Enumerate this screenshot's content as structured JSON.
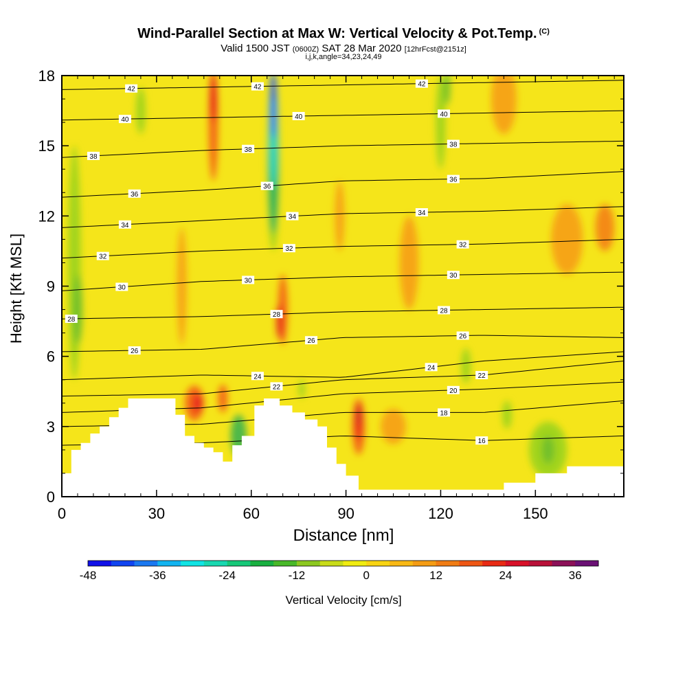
{
  "title": "Wind-Parallel Section at Max W: Vertical Velocity & Pot.Temp.",
  "title_mark": "(C)",
  "subtitle_main": "Valid 1500 JST",
  "subtitle_small1": "(0600Z)",
  "subtitle_date": "SAT 28 Mar 2020",
  "subtitle_small2": "[12hrFcst@2151z]",
  "subtitle2": "i,j,k,angle=34,23,24,49",
  "chart_data": {
    "type": "heatmap",
    "xlabel": "Distance [nm]",
    "ylabel": "Height [Kft MSL]",
    "xlim": [
      0,
      178
    ],
    "ylim": [
      0,
      18
    ],
    "xticks": [
      0,
      30,
      60,
      90,
      120,
      150
    ],
    "yticks": [
      0,
      3,
      6,
      9,
      12,
      15,
      18
    ],
    "background_color": "#f5e51a",
    "terrain_color": "#ffffff",
    "terrain": [
      [
        0,
        1
      ],
      [
        3,
        1
      ],
      [
        3,
        2
      ],
      [
        6,
        2
      ],
      [
        6,
        2.3
      ],
      [
        9,
        2.3
      ],
      [
        9,
        2.7
      ],
      [
        12,
        2.7
      ],
      [
        12,
        3
      ],
      [
        15,
        3
      ],
      [
        15,
        3.4
      ],
      [
        18,
        3.4
      ],
      [
        18,
        3.8
      ],
      [
        21,
        3.8
      ],
      [
        21,
        4.2
      ],
      [
        36,
        4.2
      ],
      [
        36,
        3.5
      ],
      [
        39,
        3.5
      ],
      [
        39,
        2.6
      ],
      [
        42,
        2.6
      ],
      [
        42,
        2.3
      ],
      [
        45,
        2.3
      ],
      [
        45,
        2.1
      ],
      [
        48,
        2.1
      ],
      [
        48,
        1.9
      ],
      [
        51,
        1.9
      ],
      [
        51,
        1.5
      ],
      [
        54,
        1.5
      ],
      [
        54,
        2.2
      ],
      [
        57,
        2.2
      ],
      [
        57,
        2.6
      ],
      [
        61,
        2.6
      ],
      [
        61,
        3.9
      ],
      [
        64,
        3.9
      ],
      [
        64,
        4.2
      ],
      [
        69,
        4.2
      ],
      [
        69,
        3.9
      ],
      [
        73,
        3.9
      ],
      [
        73,
        3.6
      ],
      [
        77,
        3.6
      ],
      [
        77,
        3.3
      ],
      [
        81,
        3.3
      ],
      [
        81,
        3.0
      ],
      [
        84,
        3.0
      ],
      [
        84,
        2.1
      ],
      [
        87,
        2.1
      ],
      [
        87,
        1.4
      ],
      [
        90,
        1.4
      ],
      [
        90,
        0.9
      ],
      [
        94,
        0.9
      ],
      [
        94,
        0.3
      ],
      [
        100,
        0.3
      ],
      [
        100,
        0.3
      ],
      [
        120,
        0.3
      ],
      [
        120,
        0.3
      ],
      [
        140,
        0.3
      ],
      [
        140,
        0.6
      ],
      [
        150,
        0.6
      ],
      [
        150,
        1.0
      ],
      [
        160,
        1.0
      ],
      [
        160,
        1.3
      ],
      [
        178,
        1.3
      ],
      [
        178,
        1
      ]
    ],
    "velocity_regions": [
      {
        "x": 4,
        "y": 10,
        "w": 4,
        "h": 10,
        "color": "#a2d41c"
      },
      {
        "x": 5,
        "y": 8,
        "w": 3,
        "h": 3,
        "color": "#72c02a"
      },
      {
        "x": 25,
        "y": 16.5,
        "w": 3,
        "h": 2,
        "color": "#a2d41c"
      },
      {
        "x": 48,
        "y": 16,
        "w": 3,
        "h": 5,
        "color": "#f46a13"
      },
      {
        "x": 48,
        "y": 17,
        "w": 2,
        "h": 2,
        "color": "#e8241a"
      },
      {
        "x": 38,
        "y": 9,
        "w": 3,
        "h": 5,
        "color": "#f6a514"
      },
      {
        "x": 42,
        "y": 4,
        "w": 6,
        "h": 1.5,
        "color": "#f46a13"
      },
      {
        "x": 43,
        "y": 4,
        "w": 3,
        "h": 0.8,
        "color": "#e8241a"
      },
      {
        "x": 51,
        "y": 4.2,
        "w": 3,
        "h": 1.2,
        "color": "#f46a13"
      },
      {
        "x": 56,
        "y": 2.6,
        "w": 5,
        "h": 1.8,
        "color": "#4db848"
      },
      {
        "x": 67,
        "y": 14.5,
        "w": 4,
        "h": 8,
        "color": "#a2d41c"
      },
      {
        "x": 67,
        "y": 14,
        "w": 3,
        "h": 5.5,
        "color": "#22b25a"
      },
      {
        "x": 67,
        "y": 15,
        "w": 2.6,
        "h": 3.6,
        "color": "#19d4c0"
      },
      {
        "x": 67,
        "y": 16.5,
        "w": 2.2,
        "h": 2.4,
        "color": "#0080f5"
      },
      {
        "x": 67,
        "y": 17.5,
        "w": 1.6,
        "h": 1.2,
        "color": "#1030e0"
      },
      {
        "x": 70,
        "y": 8,
        "w": 3,
        "h": 3,
        "color": "#f46a13"
      },
      {
        "x": 69,
        "y": 7.5,
        "w": 2,
        "h": 1.5,
        "color": "#e8241a"
      },
      {
        "x": 76,
        "y": 4.6,
        "w": 2,
        "h": 0.8,
        "color": "#a2d41c"
      },
      {
        "x": 94,
        "y": 3,
        "w": 4,
        "h": 2.4,
        "color": "#f46a13"
      },
      {
        "x": 94,
        "y": 3.2,
        "w": 2,
        "h": 1.6,
        "color": "#e8241a"
      },
      {
        "x": 94,
        "y": 3.5,
        "w": 1,
        "h": 0.8,
        "color": "#b8102a"
      },
      {
        "x": 105,
        "y": 3,
        "w": 8,
        "h": 1.5,
        "color": "#f6a514"
      },
      {
        "x": 120,
        "y": 16,
        "w": 3,
        "h": 4,
        "color": "#a2d41c"
      },
      {
        "x": 122,
        "y": 17.5,
        "w": 2,
        "h": 1.5,
        "color": "#72c02a"
      },
      {
        "x": 140,
        "y": 17,
        "w": 8,
        "h": 3,
        "color": "#f6a514"
      },
      {
        "x": 160,
        "y": 11,
        "w": 10,
        "h": 3,
        "color": "#f6a514"
      },
      {
        "x": 172,
        "y": 11.5,
        "w": 6,
        "h": 2,
        "color": "#f48a14"
      },
      {
        "x": 128,
        "y": 5.6,
        "w": 3,
        "h": 1.5,
        "color": "#a2d41c"
      },
      {
        "x": 141,
        "y": 3.5,
        "w": 3,
        "h": 1.2,
        "color": "#a2d41c"
      },
      {
        "x": 154,
        "y": 2,
        "w": 12,
        "h": 2.4,
        "color": "#a2d41c"
      },
      {
        "x": 154,
        "y": 2,
        "w": 4,
        "h": 1.2,
        "color": "#72c02a"
      },
      {
        "x": 110,
        "y": 10,
        "w": 6,
        "h": 4,
        "color": "#f6a514"
      },
      {
        "x": 88,
        "y": 12,
        "w": 3,
        "h": 3,
        "color": "#f6a514"
      }
    ],
    "isentropes": [
      {
        "value": 42,
        "y": [
          17.4,
          17.5,
          17.6,
          17.7,
          17.8
        ],
        "label_x": [
          22,
          62,
          114
        ]
      },
      {
        "value": 40,
        "y": [
          16.1,
          16.2,
          16.3,
          16.4,
          16.5
        ],
        "label_x": [
          20,
          75,
          121
        ]
      },
      {
        "value": 38,
        "y": [
          14.5,
          14.8,
          15.0,
          15.1,
          15.2
        ],
        "label_x": [
          10,
          59,
          124
        ]
      },
      {
        "value": 36,
        "y": [
          12.8,
          13.1,
          13.5,
          13.6,
          13.9
        ],
        "label_x": [
          23,
          65,
          124
        ]
      },
      {
        "value": 34,
        "y": [
          11.5,
          11.8,
          12.1,
          12.2,
          12.4
        ],
        "label_x": [
          20,
          73,
          114
        ]
      },
      {
        "value": 32,
        "y": [
          10.2,
          10.5,
          10.7,
          10.8,
          11.0
        ],
        "label_x": [
          13,
          72,
          127
        ]
      },
      {
        "value": 30,
        "y": [
          8.8,
          9.2,
          9.4,
          9.5,
          9.6
        ],
        "label_x": [
          19,
          59,
          124
        ]
      },
      {
        "value": 28,
        "y": [
          7.6,
          7.7,
          7.9,
          8.0,
          8.1
        ],
        "label_x": [
          3,
          68,
          121
        ]
      },
      {
        "value": 26,
        "y": [
          6.2,
          6.3,
          6.8,
          6.9,
          6.8
        ],
        "label_x": [
          23,
          79,
          127
        ]
      },
      {
        "value": 24,
        "y": [
          5.0,
          5.2,
          5.1,
          5.8,
          6.2
        ],
        "label_x": [
          62,
          117
        ]
      },
      {
        "value": 22,
        "y": [
          4.3,
          4.4,
          5.0,
          5.2,
          5.8
        ],
        "label_x": [
          68,
          133
        ]
      },
      {
        "value": 20,
        "y": [
          3.6,
          3.8,
          4.4,
          4.6,
          4.9
        ],
        "label_x": [
          124
        ]
      },
      {
        "value": 18,
        "y": [
          3.0,
          3.1,
          3.6,
          3.6,
          4.1
        ],
        "label_x": [
          121
        ]
      },
      {
        "value": 16,
        "y": [
          2.2,
          2.3,
          2.6,
          2.4,
          2.6
        ],
        "label_x": [
          133
        ]
      }
    ],
    "colorbar": {
      "label": "Vertical Velocity [cm/s]",
      "ticks": [
        "-48",
        "-36",
        "-24",
        "-12",
        "0",
        "12",
        "24",
        "36"
      ],
      "colors": [
        "#1010e8",
        "#1044f0",
        "#1a78f0",
        "#12b4f0",
        "#10e4e4",
        "#18d8b0",
        "#16c878",
        "#18b040",
        "#48b828",
        "#8cc820",
        "#c8dc18",
        "#f0ec10",
        "#f8d412",
        "#f8b814",
        "#f49c14",
        "#f07c14",
        "#ee5614",
        "#e82a14",
        "#d81028",
        "#b81038",
        "#8c1058",
        "#6a1074"
      ]
    }
  }
}
